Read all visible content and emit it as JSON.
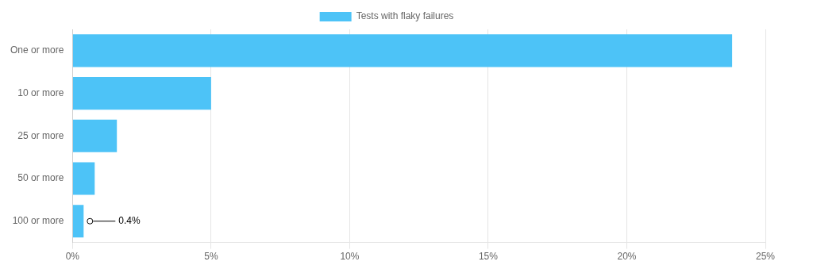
{
  "chart_data": {
    "type": "bar",
    "orientation": "horizontal",
    "categories": [
      "One or more",
      "10 or more",
      "25 or more",
      "50 or more",
      "100 or more"
    ],
    "series": [
      {
        "name": "Tests with flaky failures",
        "color": "#4dc3f7",
        "values": [
          23.8,
          5.0,
          1.6,
          0.8,
          0.4
        ]
      }
    ],
    "xlim": [
      0,
      25
    ],
    "xticks": [
      {
        "value": 0,
        "label": "0%"
      },
      {
        "value": 5,
        "label": "5%"
      },
      {
        "value": 10,
        "label": "10%"
      },
      {
        "value": 15,
        "label": "15%"
      },
      {
        "value": 20,
        "label": "20%"
      },
      {
        "value": 25,
        "label": "25%"
      }
    ],
    "grid": true,
    "legend": "top",
    "annotations": [
      {
        "text": "0.4%",
        "category": "100 or more",
        "value": 0.4
      }
    ]
  }
}
